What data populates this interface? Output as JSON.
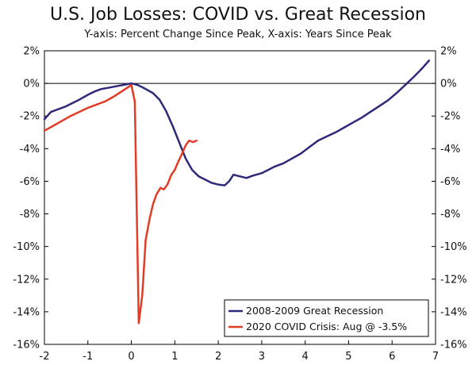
{
  "chart_data": {
    "type": "line",
    "title": "U.S. Job Losses: COVID vs. Great Recession",
    "subtitle": "Y-axis: Percent Change Since Peak, X-axis: Years Since Peak",
    "xlim": [
      -2,
      7
    ],
    "ylim": [
      -16,
      2
    ],
    "x_ticks": [
      -2,
      -1,
      0,
      1,
      2,
      3,
      4,
      5,
      6,
      7
    ],
    "y_ticks": [
      2,
      0,
      -2,
      -4,
      -6,
      -8,
      -10,
      -12,
      -14,
      -16
    ],
    "y_tick_labels": [
      "2%",
      "0%",
      "-2%",
      "-4%",
      "-6%",
      "-8%",
      "-10%",
      "-12%",
      "-14%",
      "-16%"
    ],
    "grid": false,
    "zero_line": true,
    "legend_placement": "bottom-right",
    "series": [
      {
        "name": "2008-2009 Great Recession",
        "color": "#2e2a7a",
        "x": [
          -2,
          -1.85,
          -1.7,
          -1.5,
          -1.35,
          -1.2,
          -1.0,
          -0.85,
          -0.7,
          -0.5,
          -0.3,
          -0.1,
          0,
          0.15,
          0.3,
          0.5,
          0.65,
          0.8,
          0.95,
          1.1,
          1.25,
          1.4,
          1.55,
          1.7,
          1.85,
          2.0,
          2.15,
          2.25,
          2.35,
          2.5,
          2.65,
          2.8,
          3.0,
          3.15,
          3.3,
          3.5,
          3.7,
          3.9,
          4.1,
          4.3,
          4.5,
          4.7,
          4.9,
          5.1,
          5.3,
          5.5,
          5.7,
          5.9,
          6.1,
          6.3,
          6.5,
          6.7,
          6.85
        ],
        "y": [
          -2.2,
          -1.75,
          -1.6,
          -1.4,
          -1.2,
          -1.0,
          -0.7,
          -0.5,
          -0.35,
          -0.25,
          -0.15,
          -0.05,
          0.0,
          -0.1,
          -0.3,
          -0.6,
          -1.0,
          -1.7,
          -2.6,
          -3.6,
          -4.6,
          -5.3,
          -5.7,
          -5.9,
          -6.1,
          -6.2,
          -6.25,
          -6.0,
          -5.6,
          -5.7,
          -5.8,
          -5.65,
          -5.5,
          -5.3,
          -5.1,
          -4.9,
          -4.6,
          -4.3,
          -3.9,
          -3.5,
          -3.25,
          -3.0,
          -2.7,
          -2.4,
          -2.1,
          -1.75,
          -1.4,
          -1.05,
          -0.6,
          -0.1,
          0.4,
          0.95,
          1.4
        ]
      },
      {
        "name": "2020 COVID Crisis: Aug @ -3.5%",
        "color": "#e03c26",
        "x": [
          -2,
          -1.8,
          -1.6,
          -1.4,
          -1.2,
          -1.0,
          -0.8,
          -0.6,
          -0.4,
          -0.2,
          0,
          0.08,
          0.17,
          0.25,
          0.33,
          0.42,
          0.5,
          0.58,
          0.67,
          0.75,
          0.83,
          0.92,
          1.0,
          1.08,
          1.17,
          1.25,
          1.33,
          1.42,
          1.5
        ],
        "y": [
          -2.9,
          -2.6,
          -2.3,
          -2.0,
          -1.75,
          -1.5,
          -1.3,
          -1.1,
          -0.8,
          -0.45,
          -0.1,
          -1.1,
          -14.7,
          -13.0,
          -9.6,
          -8.3,
          -7.4,
          -6.8,
          -6.4,
          -6.5,
          -6.2,
          -5.6,
          -5.3,
          -4.8,
          -4.3,
          -3.8,
          -3.5,
          -3.6,
          -3.5
        ]
      }
    ]
  }
}
